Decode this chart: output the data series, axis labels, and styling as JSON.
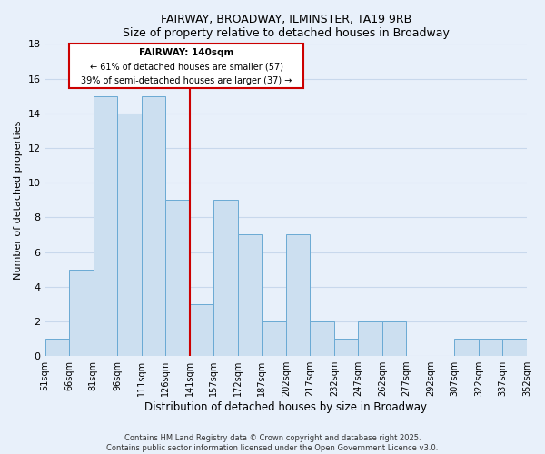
{
  "title": "FAIRWAY, BROADWAY, ILMINSTER, TA19 9RB",
  "subtitle": "Size of property relative to detached houses in Broadway",
  "xlabel": "Distribution of detached houses by size in Broadway",
  "ylabel": "Number of detached properties",
  "bin_labels": [
    "51sqm",
    "66sqm",
    "81sqm",
    "96sqm",
    "111sqm",
    "126sqm",
    "141sqm",
    "157sqm",
    "172sqm",
    "187sqm",
    "202sqm",
    "217sqm",
    "232sqm",
    "247sqm",
    "262sqm",
    "277sqm",
    "292sqm",
    "307sqm",
    "322sqm",
    "337sqm",
    "352sqm"
  ],
  "bar_values": [
    1,
    5,
    15,
    14,
    15,
    9,
    3,
    9,
    7,
    2,
    7,
    2,
    1,
    2,
    2,
    0,
    0,
    1,
    1,
    1
  ],
  "bar_color": "#ccdff0",
  "bar_edge_color": "#6aaad4",
  "ylim": [
    0,
    18
  ],
  "yticks": [
    0,
    2,
    4,
    6,
    8,
    10,
    12,
    14,
    16,
    18
  ],
  "property_line_label": "FAIRWAY: 140sqm",
  "annotation_line1": "← 61% of detached houses are smaller (57)",
  "annotation_line2": "39% of semi-detached houses are larger (37) →",
  "annotation_box_color": "#ffffff",
  "annotation_box_edge": "#cc0000",
  "grid_color": "#c8d8ec",
  "footer_line1": "Contains HM Land Registry data © Crown copyright and database right 2025.",
  "footer_line2": "Contains public sector information licensed under the Open Government Licence v3.0.",
  "bg_color": "#e8f0fa"
}
